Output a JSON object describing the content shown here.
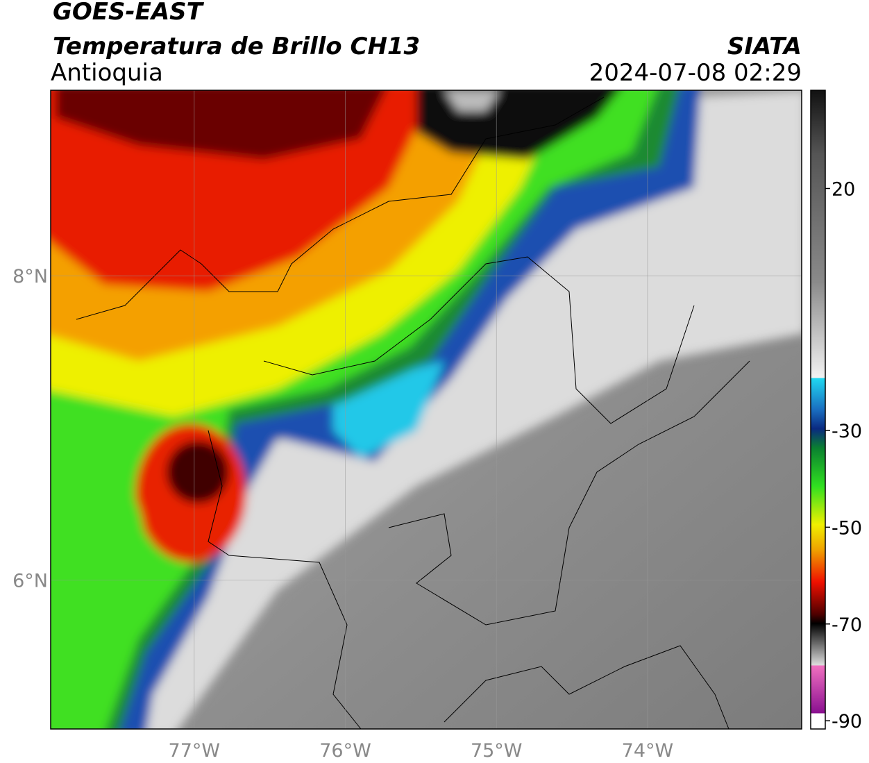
{
  "header": {
    "line1": "GOES-EAST",
    "line2": "Temperatura de Brillo CH13",
    "region": "Antioquia",
    "source": "SIATA",
    "datetime": "2024-07-08 02:29"
  },
  "map": {
    "xlim": [
      -77.95,
      -72.98
    ],
    "ylim": [
      5.02,
      9.22
    ],
    "xticks": [
      {
        "value": -77,
        "label": "77°W"
      },
      {
        "value": -76,
        "label": "76°W"
      },
      {
        "value": -75,
        "label": "75°W"
      },
      {
        "value": -74,
        "label": "74°W"
      }
    ],
    "yticks": [
      {
        "value": 6,
        "label": "6°N"
      },
      {
        "value": 8,
        "label": "8°N"
      }
    ],
    "grid": true
  },
  "colorbar": {
    "lim": [
      -91.7,
      40.3
    ],
    "ticks": [
      -90,
      -70,
      -50,
      -30,
      20
    ]
  }
}
